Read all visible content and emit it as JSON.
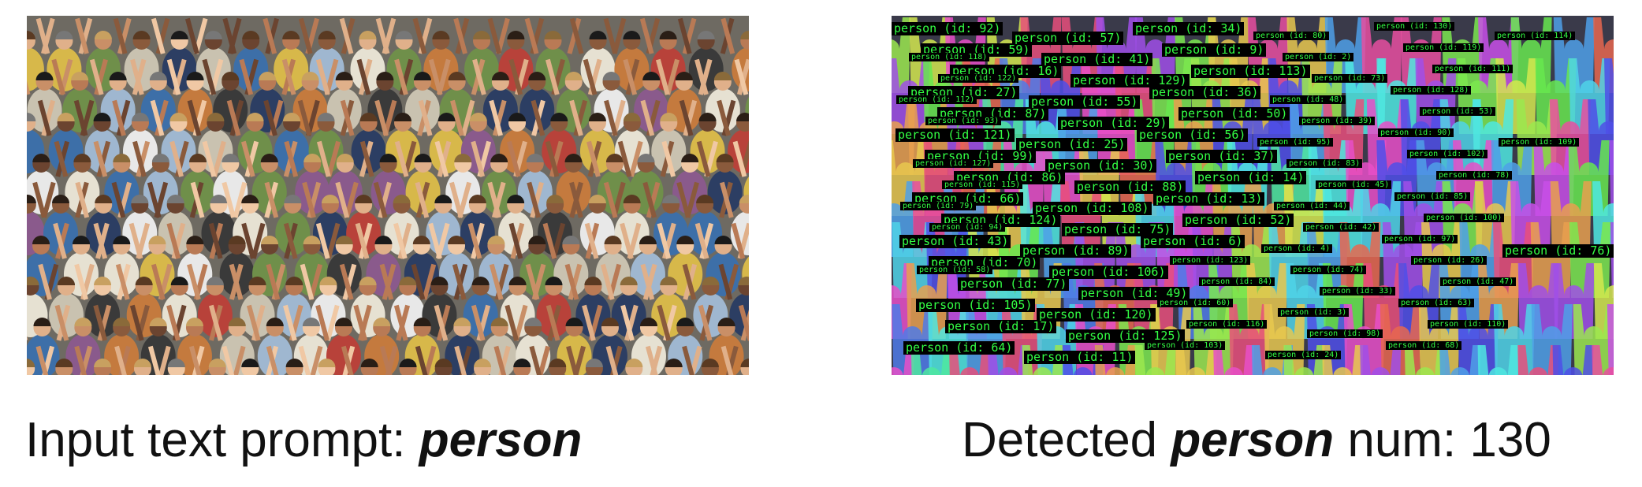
{
  "left_caption": {
    "prefix": "Input text prompt: ",
    "keyword": "person"
  },
  "right_caption": {
    "prefix": "Detected ",
    "keyword": "person",
    "suffix": " num: 130"
  },
  "detections": [
    {
      "text": "person (id: 92)",
      "size": "lg"
    },
    {
      "text": "person (id: 59)",
      "size": "lg"
    },
    {
      "text": "person (id: 16)",
      "size": "lg"
    },
    {
      "text": "person (id: 27)",
      "size": "lg"
    },
    {
      "text": "person (id: 87)",
      "size": "lg"
    },
    {
      "text": "person (id: 121)",
      "size": "lg"
    },
    {
      "text": "person (id: 99)",
      "size": "lg"
    },
    {
      "text": "person (id: 86)",
      "size": "lg"
    },
    {
      "text": "person (id: 66)",
      "size": "lg"
    },
    {
      "text": "person (id: 124)",
      "size": "lg"
    },
    {
      "text": "person (id: 43)",
      "size": "lg"
    },
    {
      "text": "person (id: 70)",
      "size": "lg"
    },
    {
      "text": "person (id: 77)",
      "size": "lg"
    },
    {
      "text": "person (id: 105)",
      "size": "lg"
    },
    {
      "text": "person (id: 17)",
      "size": "lg"
    },
    {
      "text": "person (id: 64)",
      "size": "lg"
    },
    {
      "text": "person (id: 57)",
      "size": "lg"
    },
    {
      "text": "person (id: 41)",
      "size": "lg"
    },
    {
      "text": "person (id: 129)",
      "size": "lg"
    },
    {
      "text": "person (id: 55)",
      "size": "lg"
    },
    {
      "text": "person (id: 29)",
      "size": "lg"
    },
    {
      "text": "person (id: 25)",
      "size": "lg"
    },
    {
      "text": "person (id: 30)",
      "size": "lg"
    },
    {
      "text": "person (id: 88)",
      "size": "lg"
    },
    {
      "text": "person (id: 108)",
      "size": "lg"
    },
    {
      "text": "person (id: 75)",
      "size": "lg"
    },
    {
      "text": "person (id: 89)",
      "size": "lg"
    },
    {
      "text": "person (id: 106)",
      "size": "lg"
    },
    {
      "text": "person (id: 49)",
      "size": "lg"
    },
    {
      "text": "person (id: 120)",
      "size": "lg"
    },
    {
      "text": "person (id: 125)",
      "size": "lg"
    },
    {
      "text": "person (id: 11)",
      "size": "lg"
    },
    {
      "text": "person (id: 34)",
      "size": "lg"
    },
    {
      "text": "person (id: 9)",
      "size": "lg"
    },
    {
      "text": "person (id: 113)",
      "size": "lg"
    },
    {
      "text": "person (id: 36)",
      "size": "lg"
    },
    {
      "text": "person (id: 50)",
      "size": "lg"
    },
    {
      "text": "person (id: 56)",
      "size": "lg"
    },
    {
      "text": "person (id: 37)",
      "size": "lg"
    },
    {
      "text": "person (id: 14)",
      "size": "lg"
    },
    {
      "text": "person (id: 13)",
      "size": "lg"
    },
    {
      "text": "person (id: 52)",
      "size": "lg"
    },
    {
      "text": "person (id: 6)",
      "size": "lg"
    },
    {
      "text": "person (id: 123)",
      "size": "sm"
    },
    {
      "text": "person (id: 84)",
      "size": "sm"
    },
    {
      "text": "person (id: 60)",
      "size": "sm"
    },
    {
      "text": "person (id: 116)",
      "size": "sm"
    },
    {
      "text": "person (id: 103)",
      "size": "sm"
    },
    {
      "text": "person (id: 80)",
      "size": "sm"
    },
    {
      "text": "person (id: 2)",
      "size": "sm"
    },
    {
      "text": "person (id: 73)",
      "size": "sm"
    },
    {
      "text": "person (id: 48)",
      "size": "sm"
    },
    {
      "text": "person (id: 39)",
      "size": "sm"
    },
    {
      "text": "person (id: 95)",
      "size": "sm"
    },
    {
      "text": "person (id: 83)",
      "size": "sm"
    },
    {
      "text": "person (id: 45)",
      "size": "sm"
    },
    {
      "text": "person (id: 44)",
      "size": "sm"
    },
    {
      "text": "person (id: 42)",
      "size": "sm"
    },
    {
      "text": "person (id: 4)",
      "size": "sm"
    },
    {
      "text": "person (id: 74)",
      "size": "sm"
    },
    {
      "text": "person (id: 33)",
      "size": "sm"
    },
    {
      "text": "person (id: 3)",
      "size": "sm"
    },
    {
      "text": "person (id: 98)",
      "size": "sm"
    },
    {
      "text": "person (id: 24)",
      "size": "sm"
    },
    {
      "text": "person (id: 130)",
      "size": "sm"
    },
    {
      "text": "person (id: 119)",
      "size": "sm"
    },
    {
      "text": "person (id: 111)",
      "size": "sm"
    },
    {
      "text": "person (id: 128)",
      "size": "sm"
    },
    {
      "text": "person (id: 53)",
      "size": "sm"
    },
    {
      "text": "person (id: 90)",
      "size": "sm"
    },
    {
      "text": "person (id: 102)",
      "size": "sm"
    },
    {
      "text": "person (id: 78)",
      "size": "sm"
    },
    {
      "text": "person (id: 85)",
      "size": "sm"
    },
    {
      "text": "person (id: 100)",
      "size": "sm"
    },
    {
      "text": "person (id: 97)",
      "size": "sm"
    },
    {
      "text": "person (id: 26)",
      "size": "sm"
    },
    {
      "text": "person (id: 47)",
      "size": "sm"
    },
    {
      "text": "person (id: 63)",
      "size": "sm"
    },
    {
      "text": "person (id: 110)",
      "size": "sm"
    },
    {
      "text": "person (id: 68)",
      "size": "sm"
    },
    {
      "text": "person (id: 114)",
      "size": "sm"
    },
    {
      "text": "person (id: 118)",
      "size": "sm"
    },
    {
      "text": "person (id: 122)",
      "size": "sm"
    },
    {
      "text": "person (id: 112)",
      "size": "sm"
    },
    {
      "text": "person (id: 93)",
      "size": "sm"
    },
    {
      "text": "person (id: 109)",
      "size": "sm"
    },
    {
      "text": "person (id: 127)",
      "size": "sm"
    },
    {
      "text": "person (id: 115)",
      "size": "sm"
    },
    {
      "text": "person (id: 79)",
      "size": "sm"
    },
    {
      "text": "person (id: 94)",
      "size": "sm"
    },
    {
      "text": "person (id: 76)",
      "size": "lg"
    },
    {
      "text": "person (id: 58)",
      "size": "sm"
    }
  ]
}
